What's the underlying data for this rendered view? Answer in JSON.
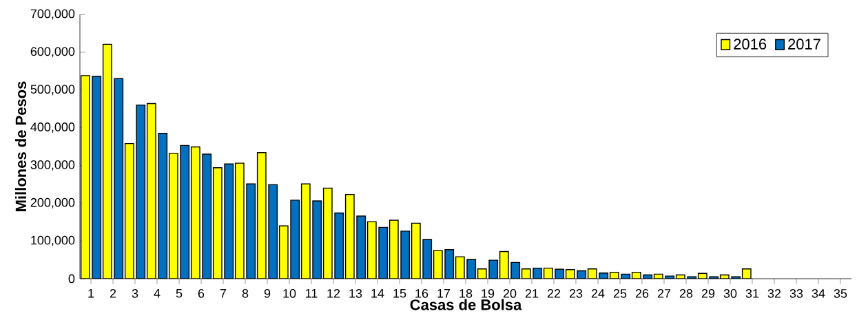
{
  "chart_data": {
    "type": "bar",
    "xlabel": "Casas de Bolsa",
    "ylabel": "Millones de Pesos",
    "categories": [
      "1",
      "2",
      "3",
      "4",
      "5",
      "6",
      "7",
      "8",
      "9",
      "10",
      "11",
      "12",
      "13",
      "14",
      "15",
      "16",
      "17",
      "18",
      "19",
      "20",
      "21",
      "22",
      "23",
      "24",
      "25",
      "26",
      "27",
      "28",
      "29",
      "30",
      "31",
      "32",
      "33",
      "34",
      "35"
    ],
    "series": [
      {
        "name": "2016",
        "color": "#ffff00",
        "values": [
          538000,
          621000,
          358000,
          464000,
          332000,
          349000,
          294000,
          306000,
          334000,
          140000,
          251000,
          240000,
          223000,
          151000,
          155000,
          147000,
          75000,
          58000,
          26000,
          72000,
          26000,
          28000,
          24000,
          26000,
          17000,
          17000,
          12000,
          10000,
          14000,
          10000,
          26000,
          null,
          null,
          null,
          null
        ]
      },
      {
        "name": "2017",
        "color": "#0070c0",
        "values": [
          536000,
          530000,
          460000,
          385000,
          353000,
          330000,
          304000,
          251000,
          249000,
          208000,
          206000,
          174000,
          166000,
          136000,
          126000,
          104000,
          77000,
          51000,
          49000,
          43000,
          28000,
          25000,
          21000,
          15000,
          12000,
          10000,
          7000,
          5000,
          5000,
          5000,
          null,
          null,
          null,
          null,
          null
        ]
      }
    ],
    "ylim": [
      0,
      700000
    ],
    "yticks": [
      {
        "value": 0,
        "label": "0"
      },
      {
        "value": 100000,
        "label": "100,000"
      },
      {
        "value": 200000,
        "label": "200,000"
      },
      {
        "value": 300000,
        "label": "300,000"
      },
      {
        "value": 400000,
        "label": "400,000"
      },
      {
        "value": 500000,
        "label": "500,000"
      },
      {
        "value": 600000,
        "label": "600,000"
      },
      {
        "value": 700000,
        "label": "700,000"
      }
    ],
    "legend": "top right",
    "grid": false
  }
}
